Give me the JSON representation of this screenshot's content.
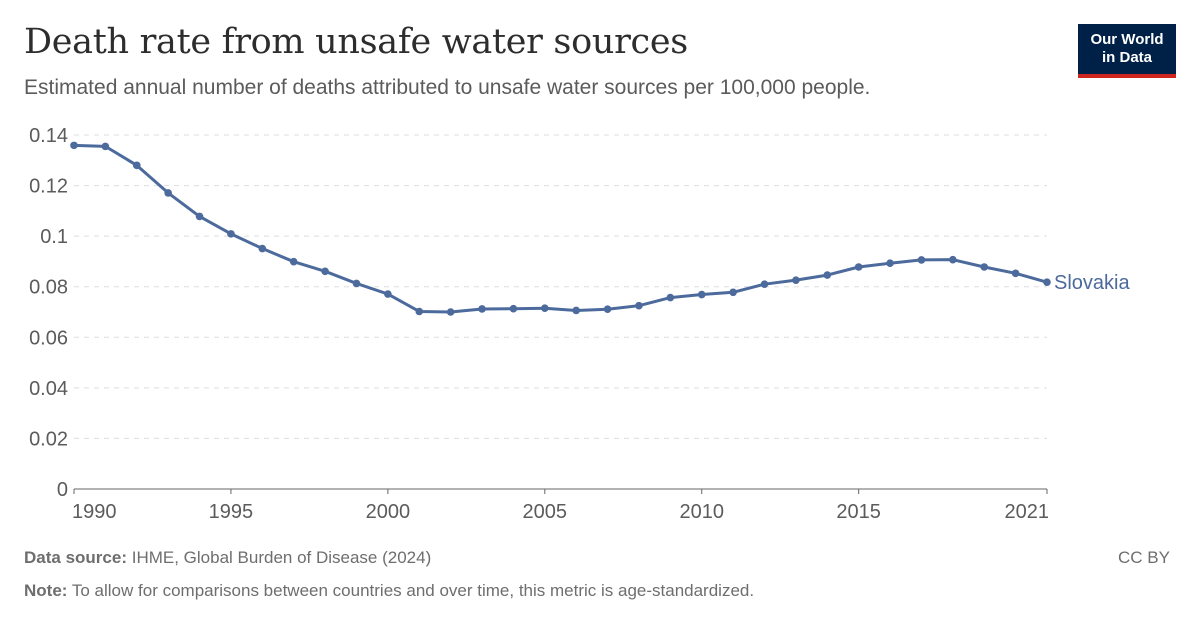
{
  "header": {
    "title": "Death rate from unsafe water sources",
    "subtitle": "Estimated annual number of deaths attributed to unsafe water sources per 100,000 people."
  },
  "logo": {
    "line1": "Our World",
    "line2": "in Data"
  },
  "footer": {
    "source_label": "Data source:",
    "source_text": "IHME, Global Burden of Disease (2024)",
    "note_label": "Note:",
    "note_text": "To allow for comparisons between countries and over time, this metric is age-standardized.",
    "license": "CC BY"
  },
  "colors": {
    "series": "#4c6a9c",
    "grid": "#dddddd",
    "axis": "#666666",
    "tick_text": "#5b5b5b"
  },
  "chart_data": {
    "type": "line",
    "title": "Death rate from unsafe water sources",
    "xlabel": "",
    "ylabel": "",
    "xlim": [
      1990,
      2021
    ],
    "ylim": [
      0,
      0.14
    ],
    "y_ticks": [
      0,
      0.02,
      0.04,
      0.06,
      0.08,
      0.1,
      0.12,
      0.14
    ],
    "y_tick_labels": [
      "0",
      "0.02",
      "0.04",
      "0.06",
      "0.08",
      "0.1",
      "0.12",
      "0.14"
    ],
    "x_ticks": [
      1990,
      1995,
      2000,
      2005,
      2010,
      2015,
      2021
    ],
    "x_tick_labels": [
      "1990",
      "1995",
      "2000",
      "2005",
      "2010",
      "2015",
      "2021"
    ],
    "grid": true,
    "series": [
      {
        "name": "Slovakia",
        "x": [
          1990,
          1991,
          1992,
          1993,
          1994,
          1995,
          1996,
          1997,
          1998,
          1999,
          2000,
          2001,
          2002,
          2003,
          2004,
          2005,
          2006,
          2007,
          2008,
          2009,
          2010,
          2011,
          2012,
          2013,
          2014,
          2015,
          2016,
          2017,
          2018,
          2019,
          2020,
          2021
        ],
        "values": [
          0.1359,
          0.1355,
          0.128,
          0.1171,
          0.1078,
          0.1009,
          0.0951,
          0.0899,
          0.0861,
          0.0813,
          0.0771,
          0.0702,
          0.07,
          0.0712,
          0.0713,
          0.0715,
          0.0706,
          0.0711,
          0.0725,
          0.0757,
          0.0769,
          0.0778,
          0.081,
          0.0826,
          0.0846,
          0.0878,
          0.0893,
          0.0906,
          0.0907,
          0.0878,
          0.0853,
          0.0818
        ]
      }
    ]
  }
}
